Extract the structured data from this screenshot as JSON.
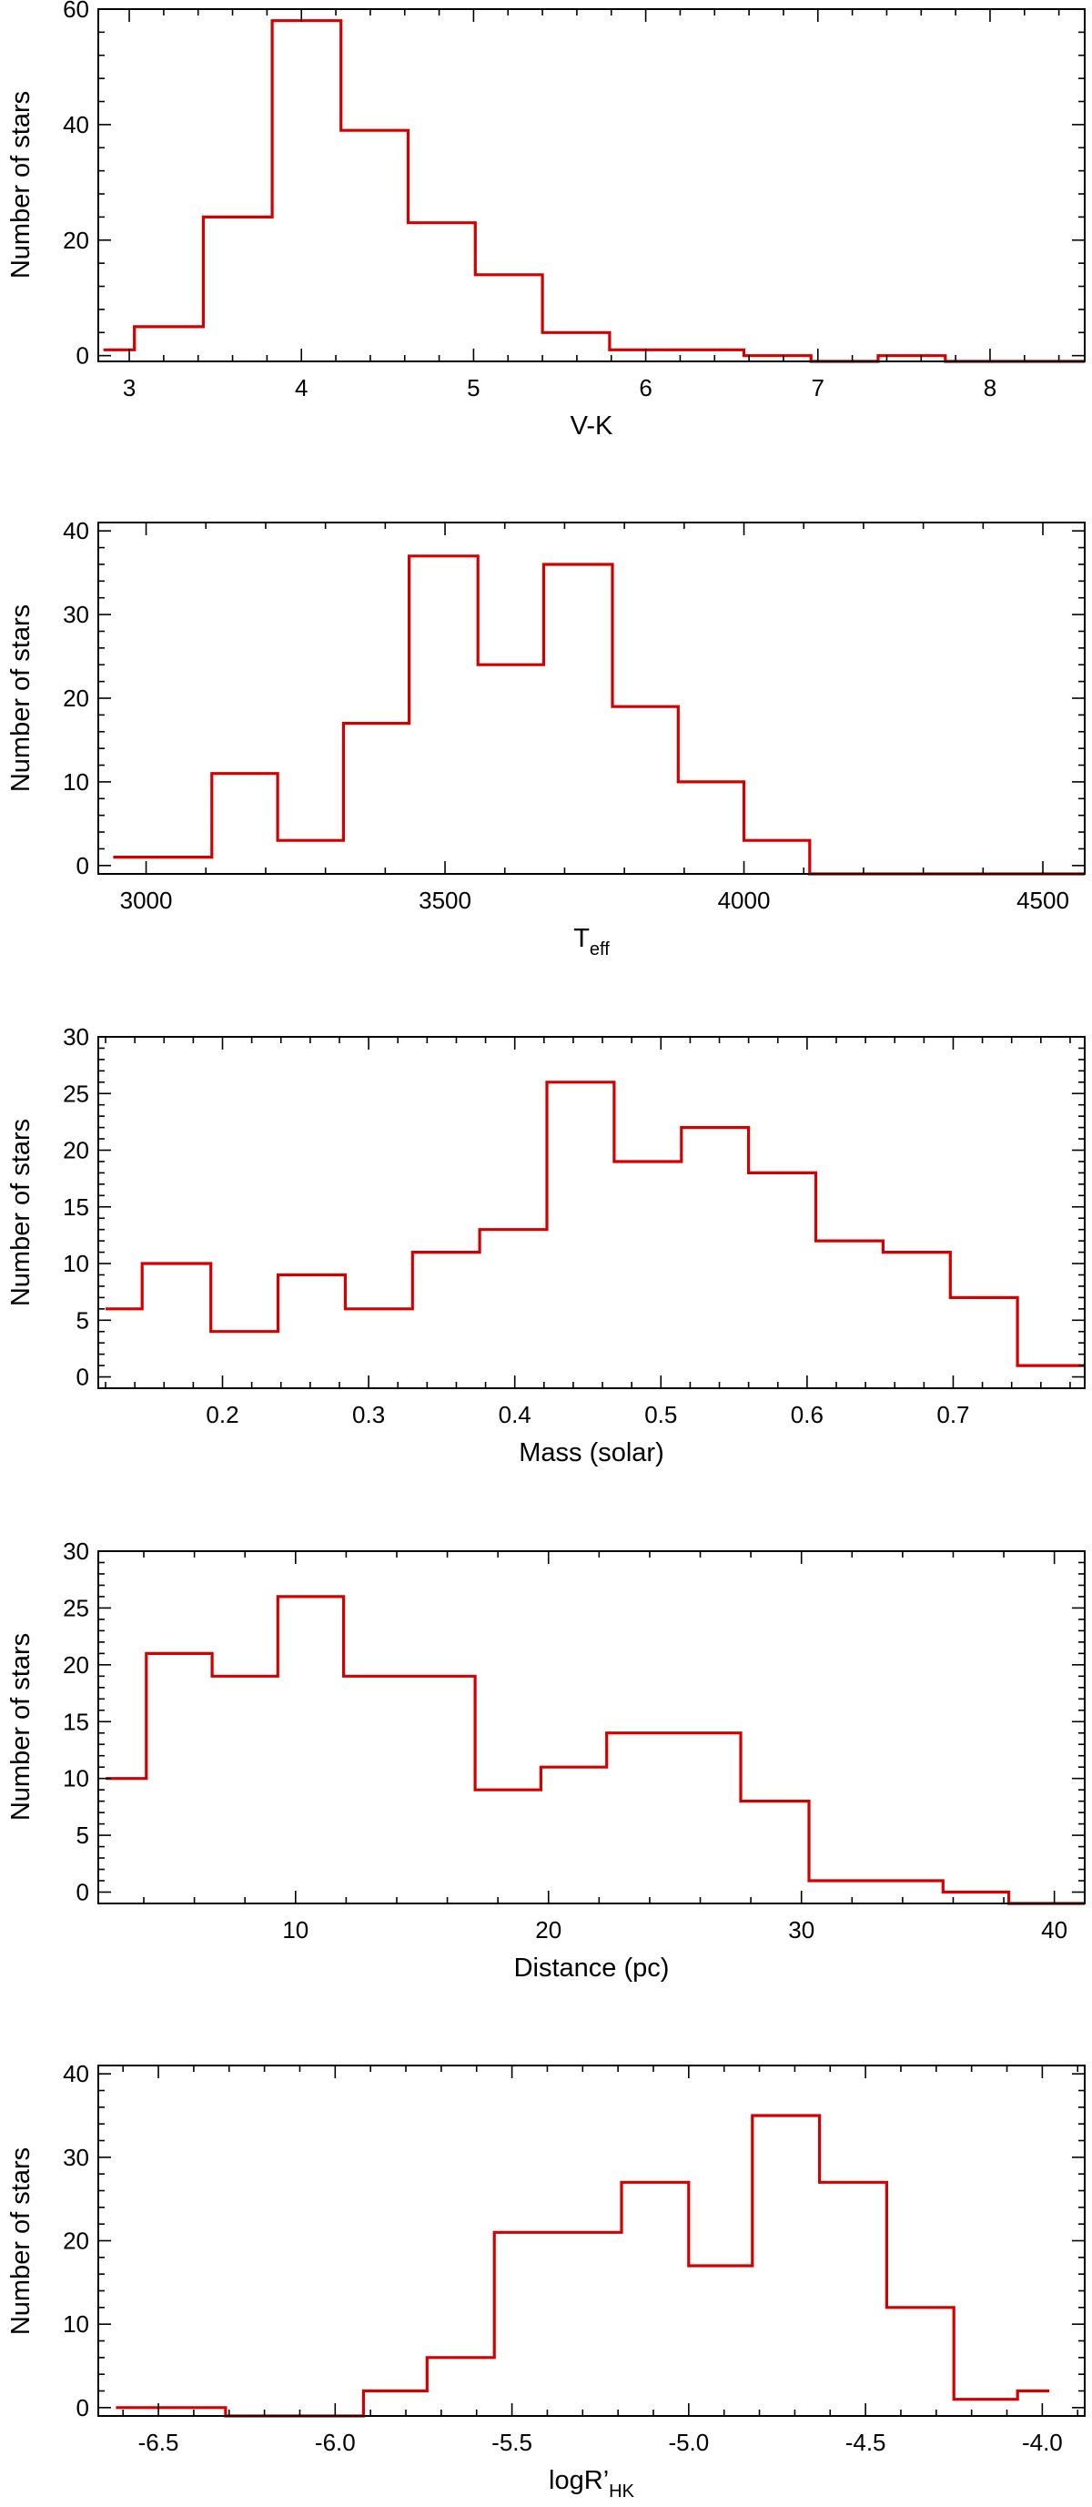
{
  "colors": {
    "histogram": "#d40000",
    "axes": "#000000"
  },
  "chart_data": [
    {
      "type": "histogram",
      "xlabel": "V-K",
      "ylabel": "Number of stars",
      "xlim": [
        2.82,
        8.55
      ],
      "ylim": [
        -1,
        60
      ],
      "xticks": [
        "3",
        "4",
        "5",
        "6",
        "7",
        "8"
      ],
      "yticks": [
        "0",
        "20",
        "40",
        "60"
      ],
      "bins": [
        {
          "x0": 2.85,
          "x1": 3.03,
          "count": 1
        },
        {
          "x0": 3.03,
          "x1": 3.43,
          "count": 5
        },
        {
          "x0": 3.43,
          "x1": 3.83,
          "count": 24
        },
        {
          "x0": 3.83,
          "x1": 4.23,
          "count": 58
        },
        {
          "x0": 4.23,
          "x1": 4.62,
          "count": 39
        },
        {
          "x0": 4.62,
          "x1": 5.01,
          "count": 23
        },
        {
          "x0": 5.01,
          "x1": 5.4,
          "count": 14
        },
        {
          "x0": 5.4,
          "x1": 5.79,
          "count": 4
        },
        {
          "x0": 5.79,
          "x1": 6.18,
          "count": 1
        },
        {
          "x0": 6.18,
          "x1": 6.57,
          "count": 1
        },
        {
          "x0": 6.57,
          "x1": 6.96,
          "count": 0
        },
        {
          "x0": 6.96,
          "x1": 7.35,
          "count": -1
        },
        {
          "x0": 7.35,
          "x1": 7.74,
          "count": 0
        },
        {
          "x0": 7.74,
          "x1": 8.55,
          "count": -1
        }
      ]
    },
    {
      "type": "histogram",
      "xlabel": "T",
      "xlabel_sub": "eff",
      "ylabel": "Number of stars",
      "xlim": [
        2920,
        4570
      ],
      "ylim": [
        -1,
        41
      ],
      "xticks": [
        "3000",
        "3500",
        "4000",
        "4500"
      ],
      "yticks": [
        "0",
        "10",
        "20",
        "30",
        "40"
      ],
      "bins": [
        {
          "x0": 2945,
          "x1": 3110,
          "count": 1
        },
        {
          "x0": 3110,
          "x1": 3220,
          "count": 11
        },
        {
          "x0": 3220,
          "x1": 3330,
          "count": 3
        },
        {
          "x0": 3330,
          "x1": 3440,
          "count": 17
        },
        {
          "x0": 3440,
          "x1": 3555,
          "count": 37
        },
        {
          "x0": 3555,
          "x1": 3665,
          "count": 24
        },
        {
          "x0": 3665,
          "x1": 3780,
          "count": 36
        },
        {
          "x0": 3780,
          "x1": 3890,
          "count": 19
        },
        {
          "x0": 3890,
          "x1": 4000,
          "count": 10
        },
        {
          "x0": 4000,
          "x1": 4110,
          "count": 3
        },
        {
          "x0": 4110,
          "x1": 4570,
          "count": -1
        }
      ]
    },
    {
      "type": "histogram",
      "xlabel": "Mass (solar)",
      "ylabel": "Number of stars",
      "xlim": [
        0.115,
        0.79
      ],
      "ylim": [
        -1,
        30
      ],
      "xticks": [
        "0.2",
        "0.3",
        "0.4",
        "0.5",
        "0.6",
        "0.7"
      ],
      "yticks": [
        "0",
        "5",
        "10",
        "15",
        "20",
        "25",
        "30"
      ],
      "bins": [
        {
          "x0": 0.12,
          "x1": 0.145,
          "count": 6
        },
        {
          "x0": 0.145,
          "x1": 0.192,
          "count": 10
        },
        {
          "x0": 0.192,
          "x1": 0.238,
          "count": 4
        },
        {
          "x0": 0.238,
          "x1": 0.284,
          "count": 9
        },
        {
          "x0": 0.284,
          "x1": 0.33,
          "count": 6
        },
        {
          "x0": 0.33,
          "x1": 0.376,
          "count": 11
        },
        {
          "x0": 0.376,
          "x1": 0.422,
          "count": 13
        },
        {
          "x0": 0.422,
          "x1": 0.468,
          "count": 26
        },
        {
          "x0": 0.468,
          "x1": 0.514,
          "count": 19
        },
        {
          "x0": 0.514,
          "x1": 0.56,
          "count": 22
        },
        {
          "x0": 0.56,
          "x1": 0.606,
          "count": 18
        },
        {
          "x0": 0.606,
          "x1": 0.652,
          "count": 12
        },
        {
          "x0": 0.652,
          "x1": 0.698,
          "count": 11
        },
        {
          "x0": 0.698,
          "x1": 0.744,
          "count": 7
        },
        {
          "x0": 0.744,
          "x1": 0.79,
          "count": 1
        }
      ]
    },
    {
      "type": "histogram",
      "xlabel": "Distance (pc)",
      "ylabel": "Number of stars",
      "xlim": [
        2.2,
        41.2
      ],
      "ylim": [
        -1,
        30
      ],
      "xticks": [
        "10",
        "20",
        "30",
        "40"
      ],
      "yticks": [
        "0",
        "5",
        "10",
        "15",
        "20",
        "25",
        "30"
      ],
      "bins": [
        {
          "x0": 2.5,
          "x1": 4.1,
          "count": 10
        },
        {
          "x0": 4.1,
          "x1": 6.7,
          "count": 21
        },
        {
          "x0": 6.7,
          "x1": 9.3,
          "count": 19
        },
        {
          "x0": 9.3,
          "x1": 11.9,
          "count": 26
        },
        {
          "x0": 11.9,
          "x1": 14.5,
          "count": 19
        },
        {
          "x0": 14.5,
          "x1": 17.1,
          "count": 19
        },
        {
          "x0": 17.1,
          "x1": 19.7,
          "count": 9
        },
        {
          "x0": 19.7,
          "x1": 22.3,
          "count": 11
        },
        {
          "x0": 22.3,
          "x1": 24.9,
          "count": 14
        },
        {
          "x0": 24.9,
          "x1": 27.6,
          "count": 14
        },
        {
          "x0": 27.6,
          "x1": 30.3,
          "count": 8
        },
        {
          "x0": 30.3,
          "x1": 32.9,
          "count": 1
        },
        {
          "x0": 32.9,
          "x1": 35.6,
          "count": 1
        },
        {
          "x0": 35.6,
          "x1": 38.2,
          "count": 0
        },
        {
          "x0": 38.2,
          "x1": 41.2,
          "count": -1
        }
      ]
    },
    {
      "type": "histogram",
      "xlabel": "logR’",
      "xlabel_sub": "HK",
      "ylabel": "Number of stars",
      "xlim": [
        -6.67,
        -3.88
      ],
      "ylim": [
        -1,
        41
      ],
      "xticks": [
        "-6.5",
        "-6.0",
        "-5.5",
        "-5.0",
        "-4.5",
        "-4.0"
      ],
      "yticks": [
        "0",
        "10",
        "20",
        "30",
        "40"
      ],
      "bins": [
        {
          "x0": -6.62,
          "x1": -6.31,
          "count": 0
        },
        {
          "x0": -6.31,
          "x1": -5.92,
          "count": -1
        },
        {
          "x0": -5.92,
          "x1": -5.74,
          "count": 2
        },
        {
          "x0": -5.74,
          "x1": -5.55,
          "count": 6
        },
        {
          "x0": -5.55,
          "x1": -5.19,
          "count": 21
        },
        {
          "x0": -5.19,
          "x1": -5.0,
          "count": 27
        },
        {
          "x0": -5.0,
          "x1": -4.82,
          "count": 17
        },
        {
          "x0": -4.82,
          "x1": -4.63,
          "count": 35
        },
        {
          "x0": -4.63,
          "x1": -4.44,
          "count": 27
        },
        {
          "x0": -4.44,
          "x1": -4.25,
          "count": 12
        },
        {
          "x0": -4.25,
          "x1": -4.07,
          "count": 1
        },
        {
          "x0": -4.07,
          "x1": -3.98,
          "count": 2
        }
      ]
    }
  ]
}
